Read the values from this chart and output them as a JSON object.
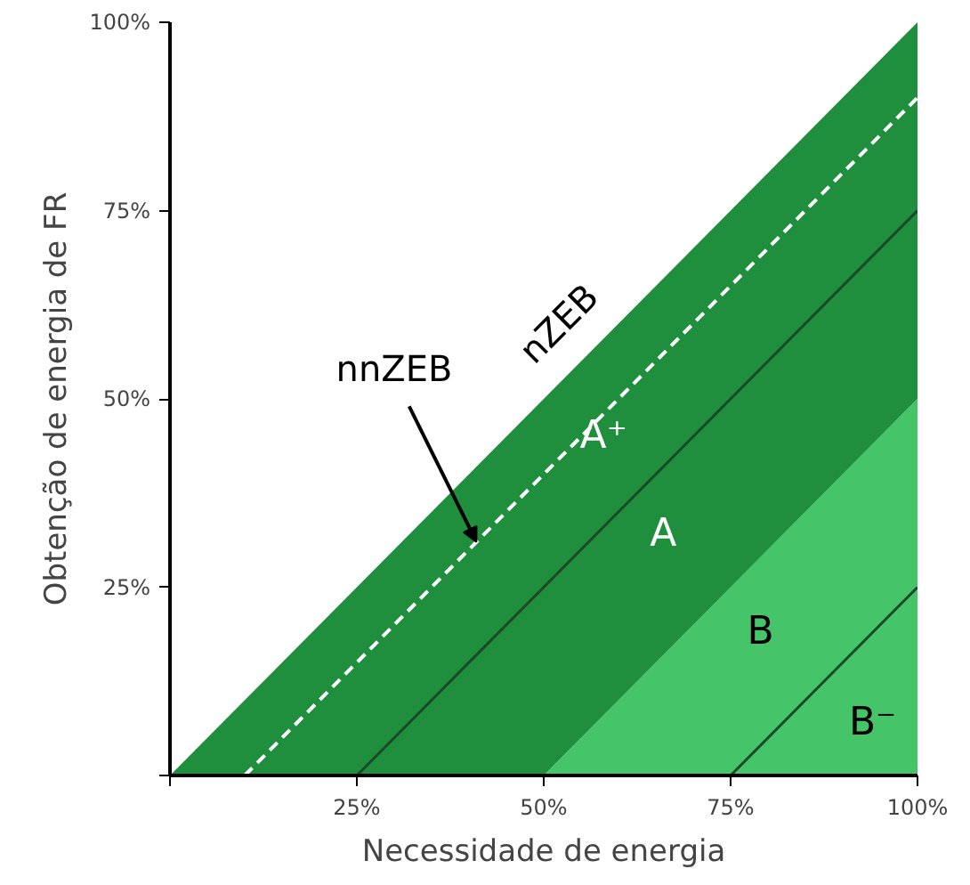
{
  "chart_data": {
    "type": "area",
    "xlabel": "Necessidade de energia",
    "ylabel": "Obtenção de energia de FR",
    "stacked": true,
    "xlim": [
      0,
      100
    ],
    "ylim": [
      0,
      100
    ],
    "xticks": [
      {
        "value": 0,
        "label": null
      },
      {
        "value": 25,
        "label": "25%"
      },
      {
        "value": 50,
        "label": "50%"
      },
      {
        "value": 75,
        "label": "75%"
      },
      {
        "value": 100,
        "label": "100%"
      }
    ],
    "yticks": [
      {
        "value": 0,
        "label": null
      },
      {
        "value": 25,
        "label": "25%"
      },
      {
        "value": 50,
        "label": "50%"
      },
      {
        "value": 75,
        "label": "75%"
      },
      {
        "value": 100,
        "label": "100%"
      }
    ],
    "grid": false,
    "series": [
      {
        "color": "#45c46a",
        "x": [
          0,
          50,
          100
        ],
        "values": [
          0,
          0,
          50
        ]
      },
      {
        "color": "#1f8f3e",
        "x": [
          0,
          50,
          100
        ],
        "values": [
          0,
          50,
          50
        ]
      },
      {
        "type": "line",
        "color": "#ffffff",
        "line_style": "dashed",
        "x": [
          10,
          100
        ],
        "values": [
          0,
          90
        ]
      },
      {
        "type": "line",
        "color": "#1a4a28",
        "line_style": "solid",
        "x": [
          25,
          100
        ],
        "values": [
          0,
          75
        ]
      },
      {
        "type": "line",
        "color": "#1a4a28",
        "line_style": "solid",
        "x": [
          75,
          100
        ],
        "values": [
          0,
          25
        ]
      }
    ],
    "annotations": [
      "nZEB",
      {
        "text": "nnZEB",
        "x": 41,
        "y": 31
      },
      "A⁺",
      "A",
      "B",
      "B⁻"
    ]
  }
}
